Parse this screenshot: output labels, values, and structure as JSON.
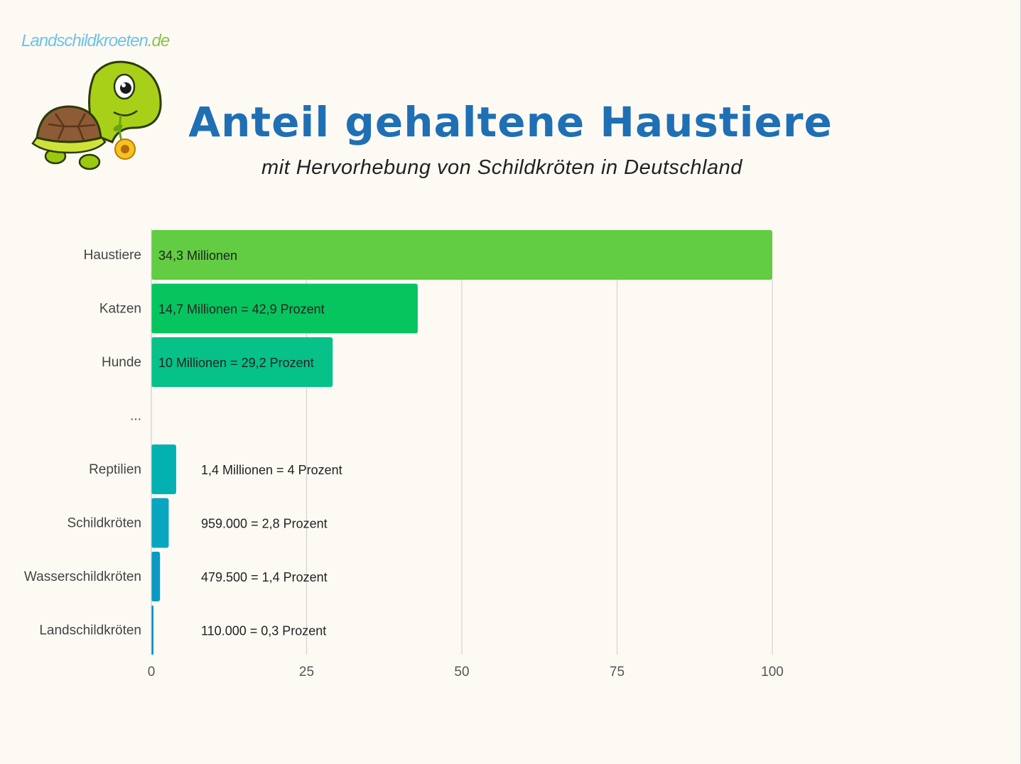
{
  "brand": {
    "name": "Landschildkroeten",
    "tld": ".de"
  },
  "chart_data": {
    "type": "bar",
    "orientation": "horizontal",
    "title": "Anteil gehaltene Haustiere",
    "subtitle": "mit Hervorhebung von Schildkröten in Deutschland",
    "categories": [
      "Haustiere",
      "Katzen",
      "Hunde",
      "...",
      "Reptilien",
      "Schildkröten",
      "Wasserschildkröten",
      "Landschildkröten"
    ],
    "values": [
      100,
      42.9,
      29.2,
      null,
      4,
      2.8,
      1.4,
      0.3
    ],
    "data_labels": [
      "34,3 Millionen",
      "14,7 Millionen = 42,9 Prozent",
      "10 Millionen = 29,2 Prozent",
      "",
      "1,4 Millionen = 4 Prozent",
      "959.000 = 2,8 Prozent",
      "479.500 = 1,4 Prozent",
      "110.000 = 0,3 Prozent"
    ],
    "colors": [
      "#62cc42",
      "#06c55f",
      "#06c188",
      "#ffffff",
      "#03b2b0",
      "#08a6bf",
      "#0a9ac4",
      "#0b8ec6"
    ],
    "xlim": [
      0,
      100
    ],
    "xticks": [
      "0",
      "25",
      "50",
      "75",
      "100"
    ],
    "xlabel": "",
    "ylabel": "",
    "grid": "vertical"
  }
}
